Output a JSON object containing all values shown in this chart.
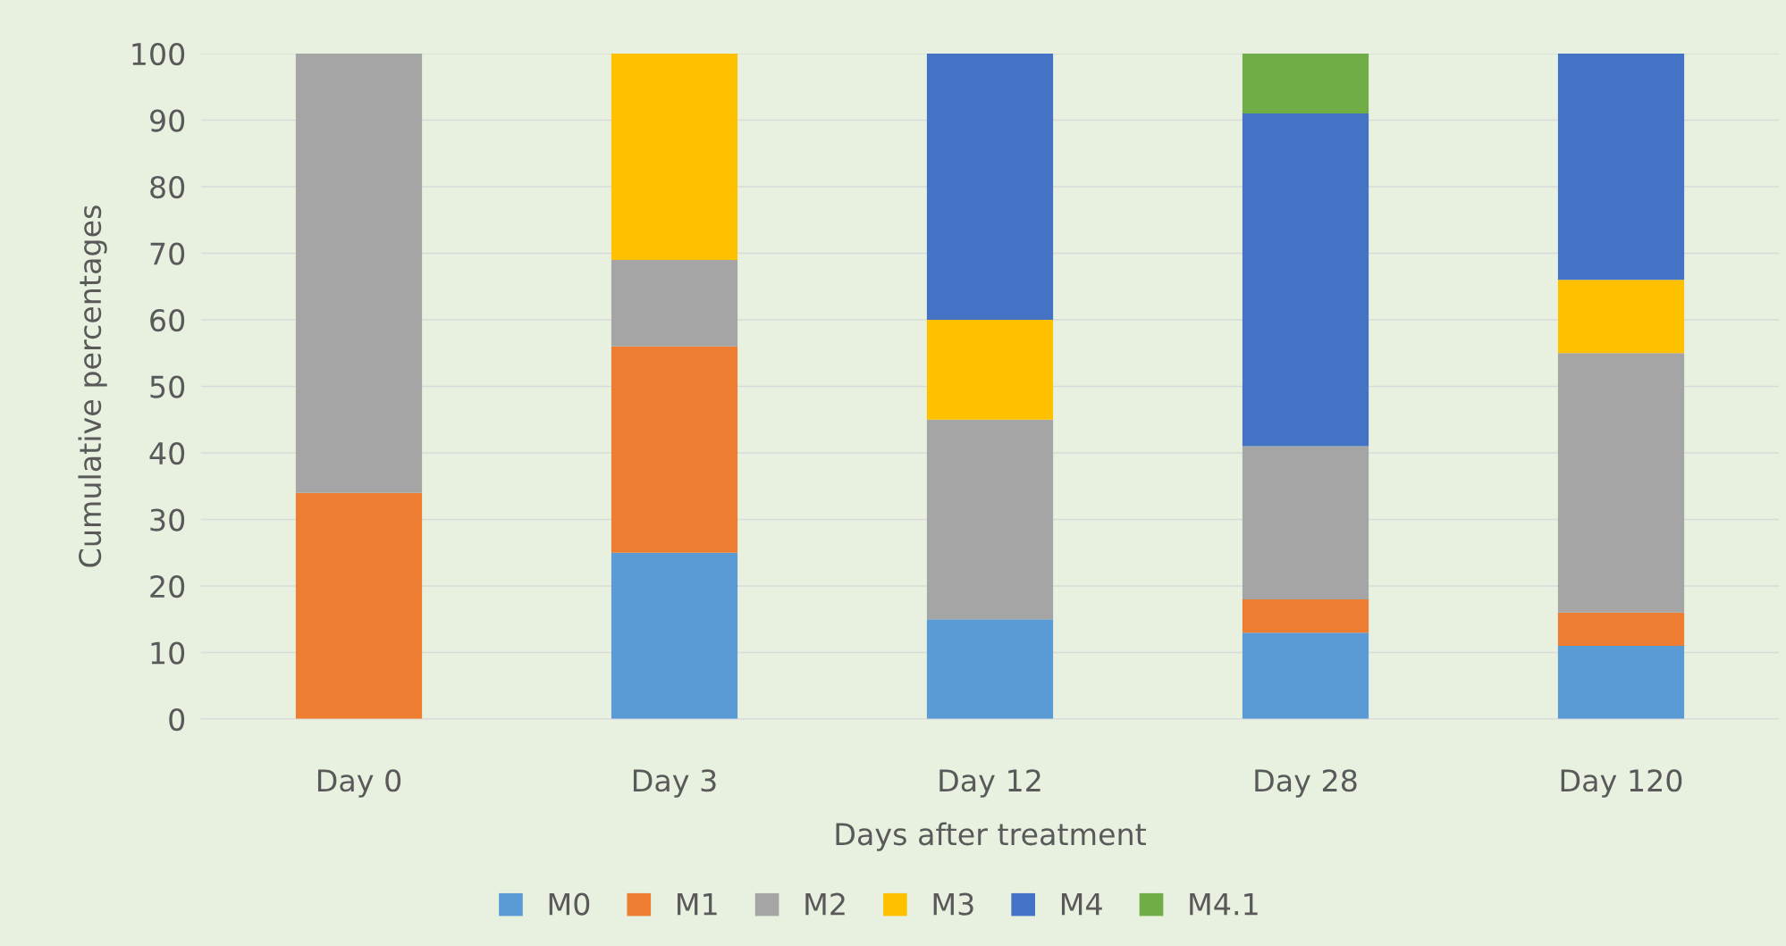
{
  "chart_data": {
    "type": "bar",
    "stacked": true,
    "xlabel": "Days after treatment",
    "ylabel": "Cumulative percentages",
    "categories": [
      "Day 0",
      "Day 3",
      "Day 12",
      "Day 28",
      "Day 120"
    ],
    "series": [
      {
        "name": "M0",
        "color": "#5b9bd5",
        "values": [
          0,
          25,
          15,
          13,
          11
        ]
      },
      {
        "name": "M1",
        "color": "#ed7d31",
        "values": [
          34,
          31,
          0,
          5,
          5
        ]
      },
      {
        "name": "M2",
        "color": "#a5a5a5",
        "values": [
          66,
          13,
          30,
          23,
          39
        ]
      },
      {
        "name": "M3",
        "color": "#ffc000",
        "values": [
          0,
          31,
          15,
          0,
          11
        ]
      },
      {
        "name": "M4",
        "color": "#4472c4",
        "values": [
          0,
          0,
          40,
          50,
          34
        ]
      },
      {
        "name": "M4.1",
        "color": "#70ad47",
        "values": [
          0,
          0,
          0,
          9,
          0
        ]
      }
    ],
    "ylim": [
      0,
      100
    ],
    "yticks": [
      0,
      10,
      20,
      30,
      40,
      50,
      60,
      70,
      80,
      90,
      100
    ],
    "grid": "y",
    "legend": "bottom"
  }
}
